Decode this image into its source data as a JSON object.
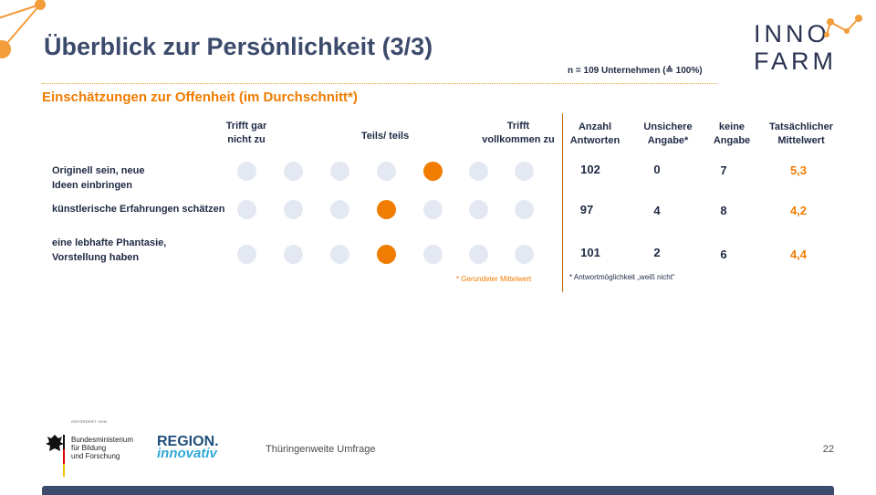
{
  "title": "Überblick zur Persönlichkeit (3/3)",
  "sample_note": "n = 109 Unternehmen (≙ 100%)",
  "subtitle": "Einschätzungen zur Offenheit (im Durchschnitt*)",
  "scale_headers": {
    "low": "Trifft gar\nnicht zu",
    "mid": "Teils/ teils",
    "high": "Trifft\nvollkommen zu"
  },
  "column_headers": {
    "answers": "Anzahl\nAntworten",
    "unsure": "Unsichere\nAngabe*",
    "none": "keine\nAngabe",
    "actual_mean": "Tatsächlicher\nMittelwert"
  },
  "rows": [
    {
      "label": "Originell sein, neue\nIdeen einbringen",
      "rounded_mean": 5,
      "answers": "102",
      "unsure": "0",
      "none": "7",
      "actual_mean": "5,3"
    },
    {
      "label": "künstlerische Erfahrungen schätzen",
      "rounded_mean": 4,
      "answers": "97",
      "unsure": "4",
      "none": "8",
      "actual_mean": "4,2"
    },
    {
      "label": "eine lebhafte Phantasie,\nVorstellung haben",
      "rounded_mean": 4,
      "answers": "101",
      "unsure": "2",
      "none": "6",
      "actual_mean": "4,4"
    }
  ],
  "scale_points": 7,
  "notes": {
    "rounded": "* Gerundeter Mittelwert",
    "unsure": "* Antwortmöglichkeit „weiß nicht“"
  },
  "footer": {
    "funded_by": "GEFÖRDERT VOM",
    "ministry": "Bundesministerium\nfür Bildung\nund Forschung",
    "program_line1": "REGION.",
    "program_line2": "innovativ",
    "survey": "Thüringenweite Umfrage",
    "page_number": "22"
  },
  "logo": {
    "line1": "INNO",
    "line2": "FARM"
  },
  "colors": {
    "accent": "#f07c00",
    "navy": "#3c4a6b",
    "dot_empty": "#e4e8f2"
  }
}
